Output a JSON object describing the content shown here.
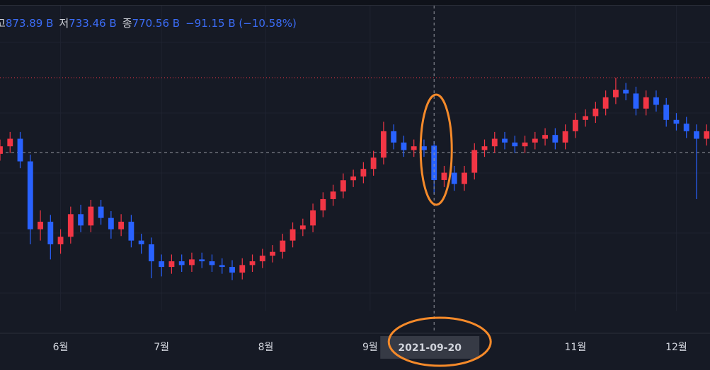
{
  "chart_data": {
    "type": "candlestick",
    "legend": [
      {
        "label": "고",
        "value": "873.89 B"
      },
      {
        "label": "저",
        "value": "733.46 B"
      },
      {
        "label": "종",
        "value": "770.56 B"
      }
    ],
    "change": "−91.15 B (−10.58%)",
    "up_color": "#f23645",
    "down_color": "#2962ff",
    "xlim": [
      "2021-05-14",
      "2021-12-11"
    ],
    "xticks": [
      {
        "value": "2021-06-01",
        "label": "6월"
      },
      {
        "value": "2021-07-01",
        "label": "7월"
      },
      {
        "value": "2021-08-01",
        "label": "8월"
      },
      {
        "value": "2021-09-01",
        "label": "9월"
      },
      {
        "value": "2021-11-01",
        "label": "11월"
      },
      {
        "value": "2021-12-01",
        "label": "12월"
      }
    ],
    "ylim": [
      424,
      1248
    ],
    "crosshair_index": 43,
    "x": [
      "2021-05-14",
      "2021-05-17",
      "2021-05-20",
      "2021-05-23",
      "2021-05-26",
      "2021-05-29",
      "2021-06-01",
      "2021-06-04",
      "2021-06-07",
      "2021-06-10",
      "2021-06-13",
      "2021-06-16",
      "2021-06-19",
      "2021-06-22",
      "2021-06-25",
      "2021-06-28",
      "2021-07-01",
      "2021-07-04",
      "2021-07-07",
      "2021-07-10",
      "2021-07-13",
      "2021-07-16",
      "2021-07-19",
      "2021-07-22",
      "2021-07-25",
      "2021-07-28",
      "2021-07-31",
      "2021-08-03",
      "2021-08-06",
      "2021-08-09",
      "2021-08-12",
      "2021-08-15",
      "2021-08-18",
      "2021-08-21",
      "2021-08-24",
      "2021-08-27",
      "2021-08-30",
      "2021-09-02",
      "2021-09-05",
      "2021-09-08",
      "2021-09-11",
      "2021-09-14",
      "2021-09-17",
      "2021-09-20",
      "2021-09-23",
      "2021-09-26",
      "2021-09-29",
      "2021-10-02",
      "2021-10-05",
      "2021-10-08",
      "2021-10-11",
      "2021-10-14",
      "2021-10-17",
      "2021-10-20",
      "2021-10-23",
      "2021-10-26",
      "2021-10-29",
      "2021-11-01",
      "2021-11-04",
      "2021-11-07",
      "2021-11-10",
      "2021-11-13",
      "2021-11-16",
      "2021-11-19",
      "2021-11-22",
      "2021-11-25",
      "2021-11-28",
      "2021-12-01",
      "2021-12-04",
      "2021-12-07",
      "2021-12-10"
    ],
    "open": [
      840,
      860,
      880,
      820,
      640,
      660,
      600,
      620,
      680,
      650,
      700,
      670,
      640,
      660,
      610,
      600,
      555,
      540,
      555,
      545,
      560,
      555,
      545,
      540,
      525,
      545,
      555,
      570,
      580,
      610,
      640,
      650,
      690,
      720,
      740,
      770,
      780,
      800,
      830,
      900,
      870,
      850,
      860,
      861.71,
      770.56,
      790,
      760,
      790,
      850,
      860,
      880,
      870,
      860,
      870,
      880,
      890,
      870,
      900,
      930,
      940,
      960,
      990,
      1010,
      1000,
      960,
      990,
      970,
      930,
      920,
      900,
      880
    ],
    "high": [
      878,
      898,
      898,
      838,
      690,
      678,
      640,
      700,
      705,
      718,
      718,
      688,
      680,
      678,
      628,
      618,
      573,
      573,
      573,
      578,
      578,
      573,
      563,
      558,
      563,
      573,
      588,
      598,
      628,
      658,
      668,
      708,
      738,
      758,
      788,
      798,
      818,
      848,
      925,
      918,
      888,
      878,
      878,
      873.89,
      808,
      808,
      808,
      868,
      878,
      898,
      898,
      888,
      888,
      898,
      908,
      908,
      918,
      948,
      958,
      978,
      1008,
      1042,
      1028,
      1018,
      1008,
      1008,
      988,
      948,
      938,
      918,
      918
    ],
    "low": [
      822,
      842,
      802,
      600,
      610,
      560,
      575,
      602,
      632,
      632,
      652,
      615,
      622,
      592,
      575,
      510,
      515,
      522,
      527,
      527,
      537,
      527,
      522,
      505,
      507,
      527,
      537,
      552,
      562,
      592,
      622,
      632,
      672,
      702,
      722,
      752,
      762,
      782,
      812,
      852,
      832,
      832,
      832,
      733.46,
      752,
      742,
      742,
      772,
      832,
      842,
      852,
      842,
      842,
      852,
      862,
      852,
      852,
      882,
      912,
      922,
      942,
      972,
      982,
      942,
      942,
      952,
      912,
      902,
      882,
      720,
      862
    ],
    "close": [
      860,
      880,
      820,
      640,
      660,
      600,
      620,
      680,
      650,
      700,
      670,
      640,
      660,
      610,
      600,
      555,
      540,
      555,
      545,
      560,
      555,
      545,
      540,
      525,
      545,
      555,
      570,
      580,
      610,
      640,
      650,
      690,
      720,
      740,
      770,
      780,
      800,
      830,
      900,
      870,
      850,
      860,
      850,
      770.56,
      790,
      760,
      790,
      850,
      860,
      880,
      870,
      860,
      870,
      880,
      890,
      870,
      900,
      930,
      940,
      960,
      990,
      1010,
      1000,
      960,
      990,
      970,
      930,
      920,
      900,
      880,
      900
    ]
  }
}
